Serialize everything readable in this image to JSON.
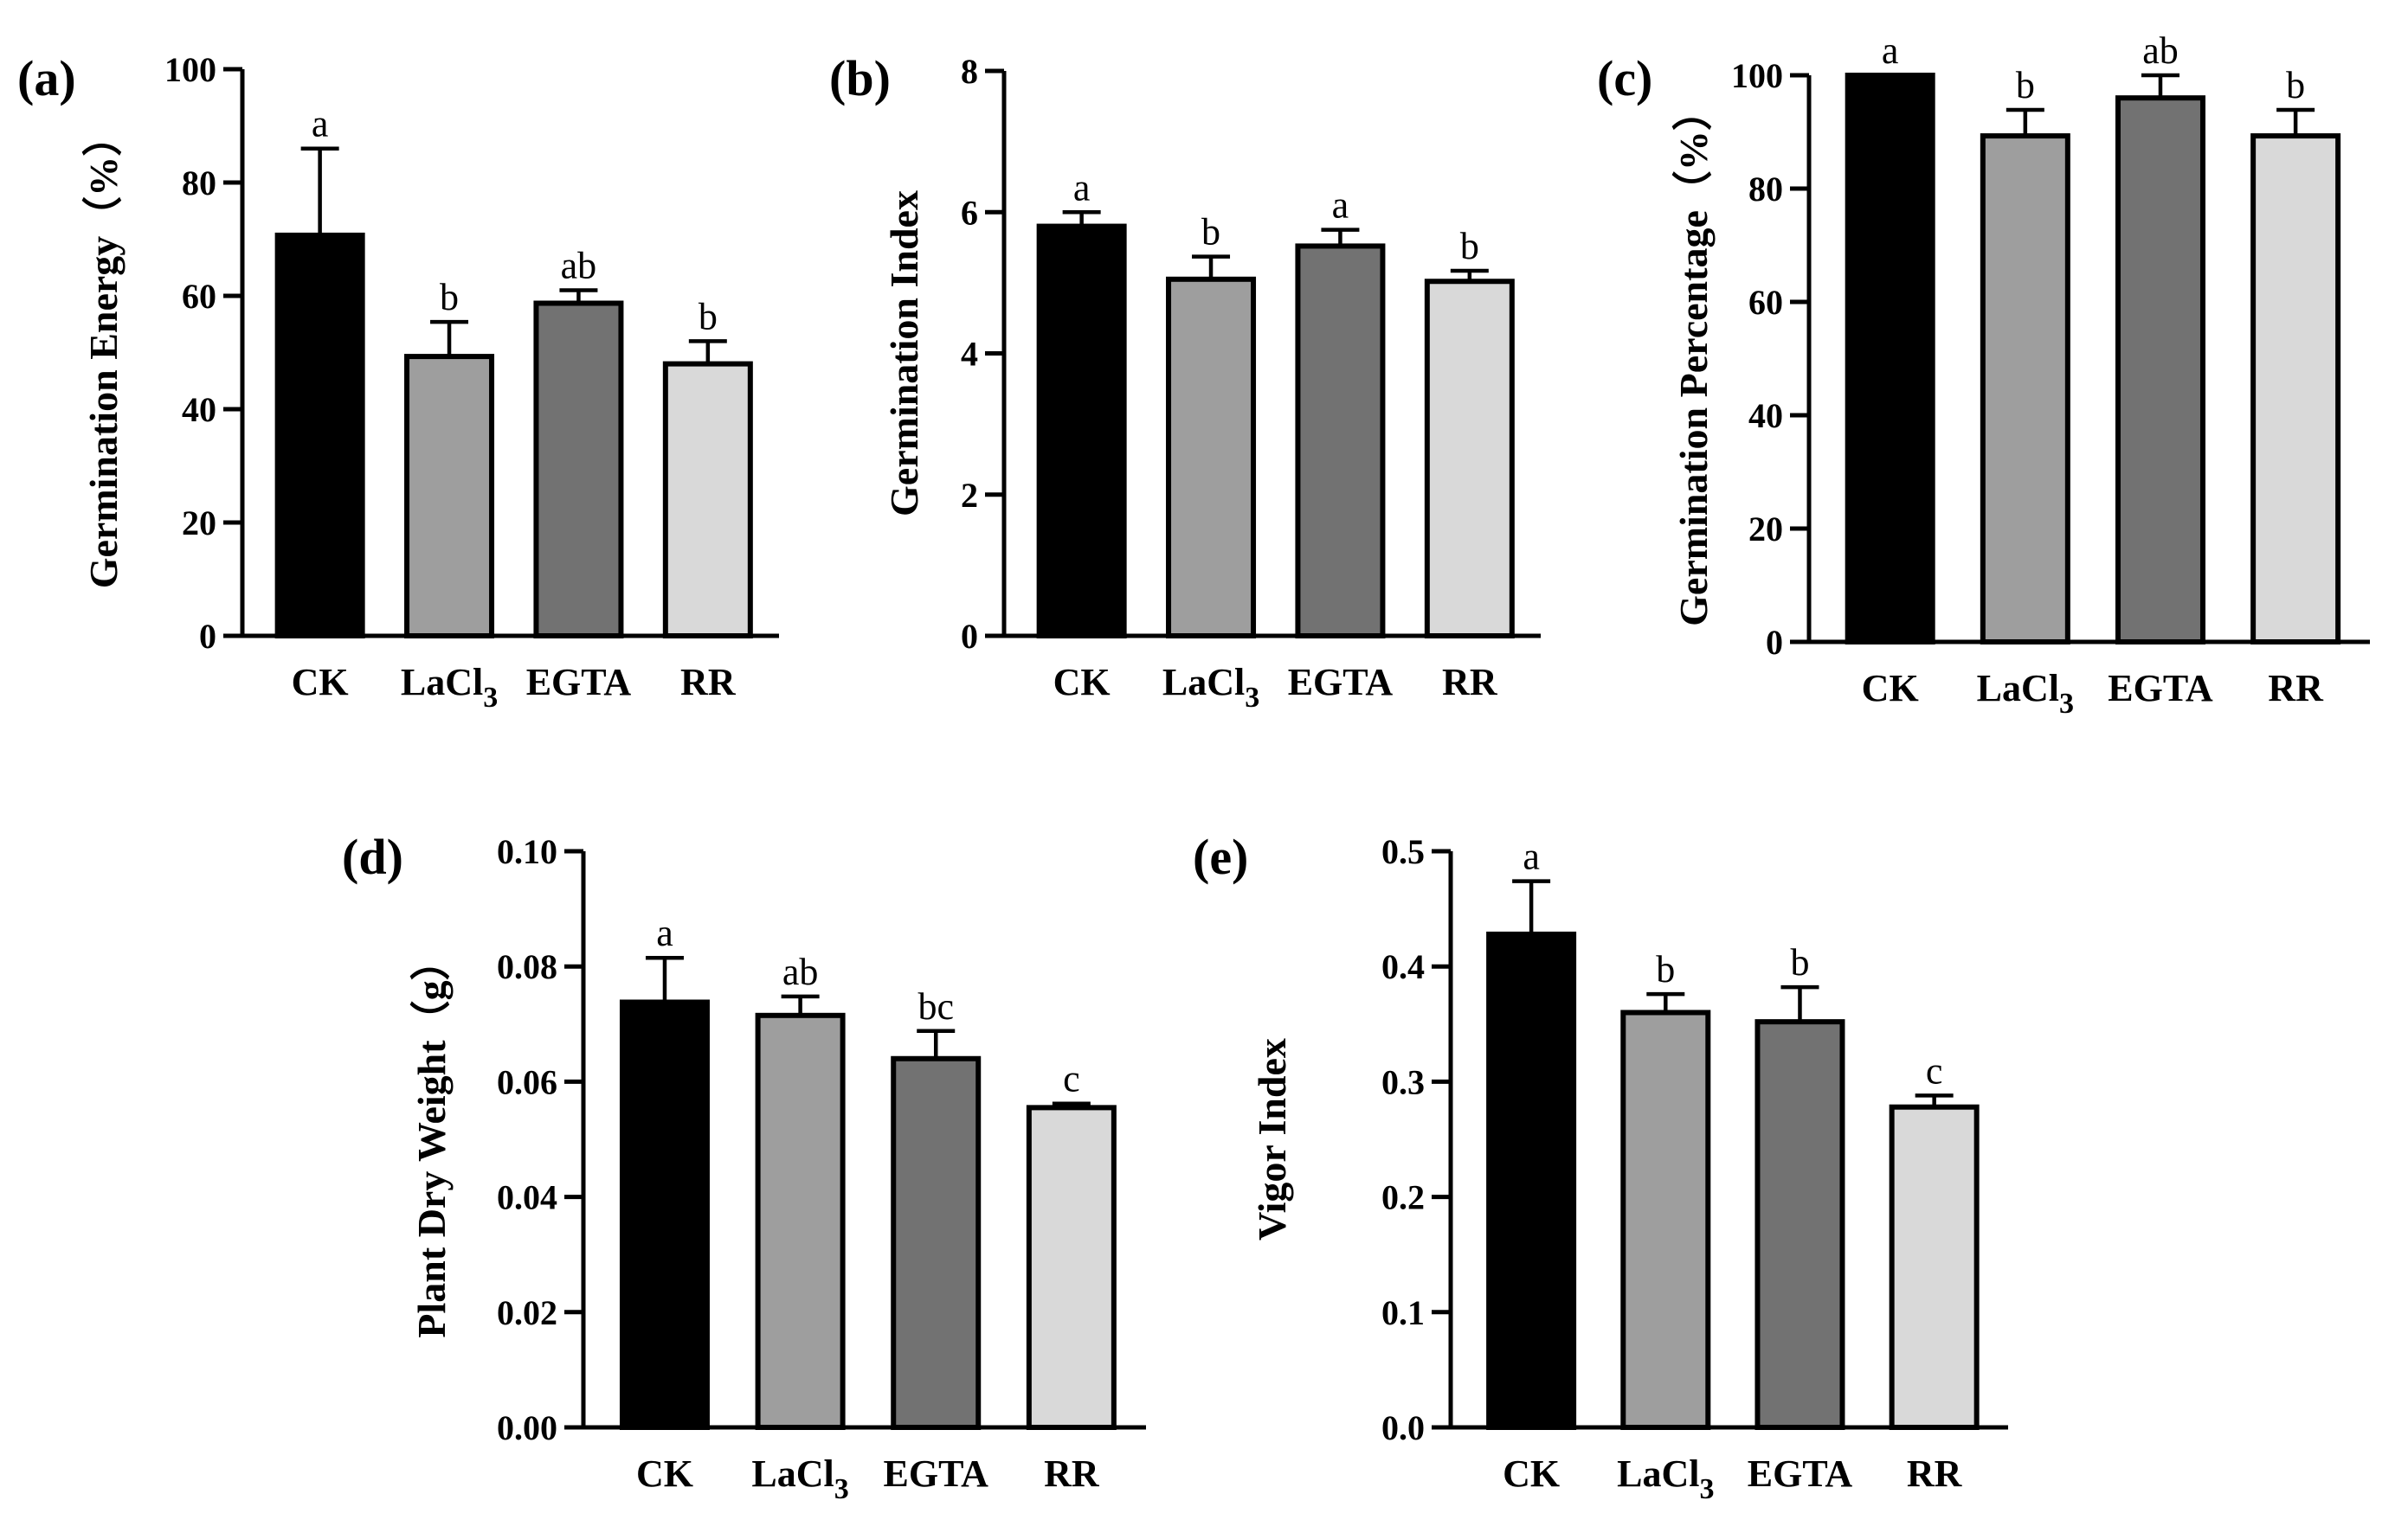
{
  "chart_data": [
    {
      "type": "bar",
      "panel_label": "(a)",
      "ylabel": "Germination Energy（%）",
      "ylim": [
        0,
        100
      ],
      "yticks": [
        "0",
        "20",
        "40",
        "60",
        "80",
        "100"
      ],
      "categories": [
        "CK",
        "LaCl",
        "EGTA",
        "RR"
      ],
      "category_subscripts": [
        "",
        "3",
        "",
        ""
      ],
      "values": [
        70.7,
        49.3,
        58.7,
        48.0
      ],
      "errors": [
        15.3,
        6.1,
        2.3,
        4.0
      ],
      "significance": [
        "a",
        "b",
        "ab",
        "b"
      ],
      "colors": [
        "#000000",
        "#9e9e9e",
        "#727272",
        "#d9d9d9"
      ]
    },
    {
      "type": "bar",
      "panel_label": "(b)",
      "ylabel": "Germination Index",
      "ylim": [
        0,
        8
      ],
      "yticks": [
        "0",
        "2",
        "4",
        "6",
        "8"
      ],
      "categories": [
        "CK",
        "LaCl",
        "EGTA",
        "RR"
      ],
      "category_subscripts": [
        "",
        "3",
        "",
        ""
      ],
      "values": [
        5.8,
        5.05,
        5.52,
        5.02
      ],
      "errors": [
        0.2,
        0.32,
        0.23,
        0.15
      ],
      "significance": [
        "a",
        "b",
        "a",
        "b"
      ],
      "colors": [
        "#000000",
        "#9e9e9e",
        "#727272",
        "#d9d9d9"
      ]
    },
    {
      "type": "bar",
      "panel_label": "(c)",
      "ylabel": "Germination Percentage（%）",
      "ylim": [
        0,
        100
      ],
      "yticks": [
        "0",
        "20",
        "40",
        "60",
        "80",
        "100"
      ],
      "categories": [
        "CK",
        "LaCl",
        "EGTA",
        "RR"
      ],
      "category_subscripts": [
        "",
        "3",
        "",
        ""
      ],
      "values": [
        100,
        89.3,
        96.0,
        89.3
      ],
      "errors": [
        0,
        4.6,
        4.0,
        4.6
      ],
      "significance": [
        "a",
        "b",
        "ab",
        "b"
      ],
      "colors": [
        "#000000",
        "#9e9e9e",
        "#727272",
        "#d9d9d9"
      ]
    },
    {
      "type": "bar",
      "panel_label": "(d)",
      "ylabel": "Plant Dry Weight（g）",
      "ylim": [
        0,
        0.1
      ],
      "yticks": [
        "0.00",
        "0.02",
        "0.04",
        "0.06",
        "0.08",
        "0.10"
      ],
      "categories": [
        "CK",
        "LaCl",
        "EGTA",
        "RR"
      ],
      "category_subscripts": [
        "",
        "3",
        "",
        ""
      ],
      "values": [
        0.0738,
        0.0715,
        0.064,
        0.0555
      ],
      "errors": [
        0.0077,
        0.0033,
        0.0048,
        0.0007
      ],
      "significance": [
        "a",
        "ab",
        "bc",
        "c"
      ],
      "colors": [
        "#000000",
        "#9e9e9e",
        "#727272",
        "#d9d9d9"
      ]
    },
    {
      "type": "bar",
      "panel_label": "(e)",
      "ylabel": "Vigor Index",
      "ylim": [
        0,
        0.5
      ],
      "yticks": [
        "0.0",
        "0.1",
        "0.2",
        "0.3",
        "0.4",
        "0.5"
      ],
      "categories": [
        "CK",
        "LaCl",
        "EGTA",
        "RR"
      ],
      "category_subscripts": [
        "",
        "3",
        "",
        ""
      ],
      "values": [
        0.428,
        0.36,
        0.352,
        0.278
      ],
      "errors": [
        0.046,
        0.016,
        0.03,
        0.01
      ],
      "significance": [
        "a",
        "b",
        "b",
        "c"
      ],
      "colors": [
        "#000000",
        "#9e9e9e",
        "#727272",
        "#d9d9d9"
      ]
    }
  ]
}
